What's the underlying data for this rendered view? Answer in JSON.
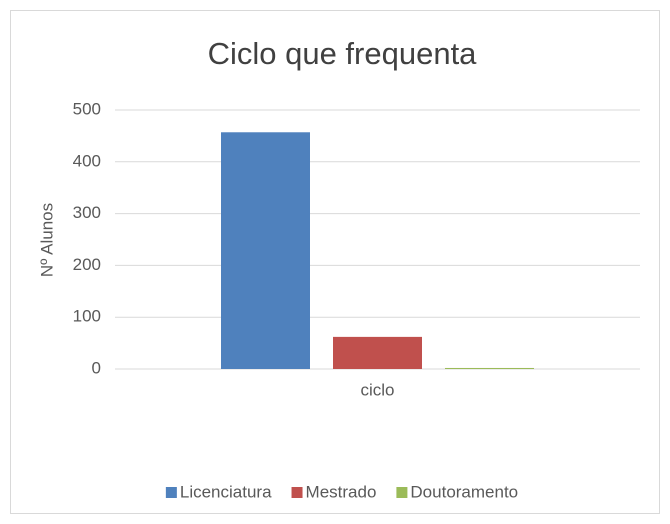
{
  "chart_data": {
    "type": "bar",
    "title": "Ciclo que frequenta",
    "y_label": "Nº Alunos",
    "categories": [
      "ciclo"
    ],
    "series": [
      {
        "name": "Licenciatura",
        "color": "#4f81bd",
        "values": [
          457
        ]
      },
      {
        "name": "Mestrado",
        "color": "#c0504d",
        "values": [
          62
        ]
      },
      {
        "name": "Doutoramento",
        "color": "#9bbb59",
        "values": [
          2
        ]
      }
    ],
    "ylim": [
      0,
      500
    ],
    "yticks": [
      0,
      100,
      200,
      300,
      400,
      500
    ],
    "grid": true,
    "legend": "bottom"
  }
}
